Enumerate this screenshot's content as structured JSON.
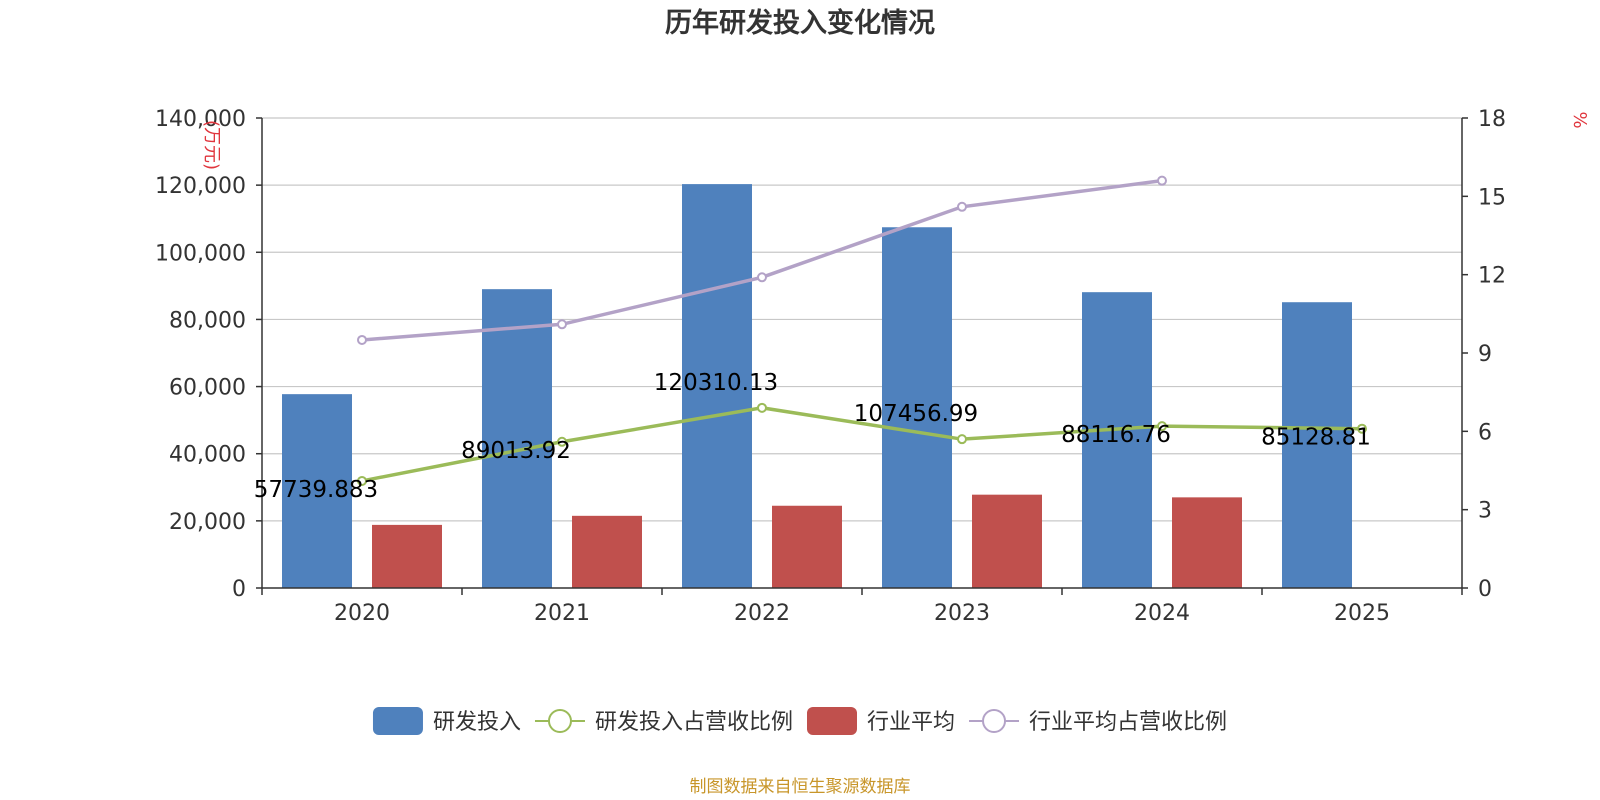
{
  "chart_data": {
    "type": "bar",
    "title": "历年研发投入变化情况",
    "categories": [
      "2020",
      "2021",
      "2022",
      "2023",
      "2024",
      "2025"
    ],
    "y_left": {
      "unit_label": "(万元)",
      "ylim": [
        0,
        140000
      ],
      "ticks": [
        "0",
        "20,000",
        "40,000",
        "60,000",
        "80,000",
        "100,000",
        "120,000",
        "140,000"
      ],
      "tick_values": [
        0,
        20000,
        40000,
        60000,
        80000,
        100000,
        120000,
        140000
      ]
    },
    "y_right": {
      "unit_label": "%",
      "ylim": [
        0,
        18
      ],
      "ticks": [
        "0",
        "3",
        "6",
        "9",
        "12",
        "15",
        "18"
      ],
      "tick_values": [
        0,
        3,
        6,
        9,
        12,
        15,
        18
      ]
    },
    "series": [
      {
        "name": "研发投入",
        "type": "bar",
        "axis": "left",
        "color": "#4f81bd",
        "values": [
          57739.883,
          89013.92,
          120310.13,
          107456.99,
          88116.76,
          85128.81
        ],
        "labels": [
          "57739.883",
          "89013.92",
          "120310.13",
          "107456.99",
          "88116.76",
          "85128.81"
        ]
      },
      {
        "name": "研发投入占营收比例",
        "type": "line",
        "axis": "right",
        "color": "#9bbb59",
        "values": [
          4.1,
          5.6,
          6.9,
          5.7,
          6.2,
          6.1
        ]
      },
      {
        "name": "行业平均",
        "type": "bar",
        "axis": "left",
        "color": "#c0504d",
        "values": [
          18800,
          21500,
          24500,
          27800,
          27000,
          null
        ]
      },
      {
        "name": "行业平均占营收比例",
        "type": "line",
        "axis": "right",
        "color": "#b3a2c7",
        "values": [
          9.5,
          10.1,
          11.9,
          14.6,
          15.6,
          null
        ]
      }
    ],
    "grid": true,
    "legend_position": "bottom"
  },
  "footer": {
    "source": "制图数据来自恒生聚源数据库",
    "source_color": "#c8962a"
  },
  "colors": {
    "unit_label": "#e0353d",
    "axis": "#333333",
    "grid": "#c8c8c8"
  }
}
